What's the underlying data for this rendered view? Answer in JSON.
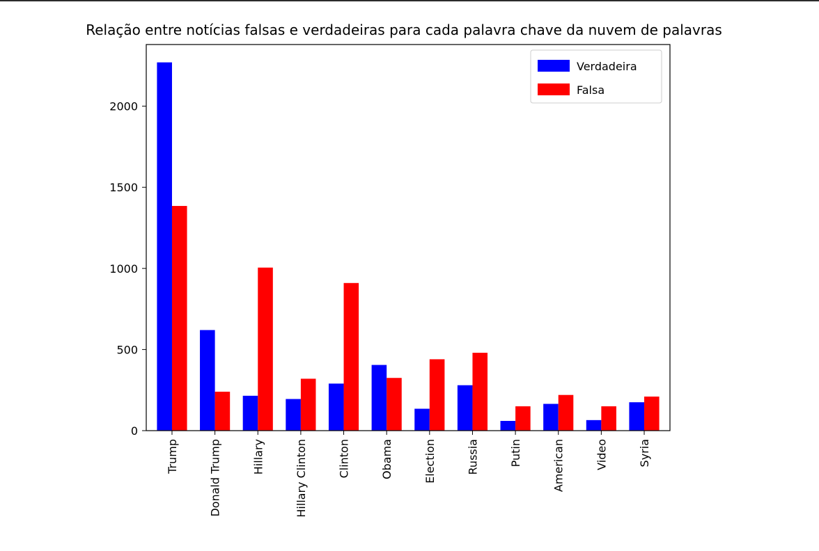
{
  "chart_data": {
    "type": "bar",
    "title": "Relação entre notícias falsas e verdadeiras para cada palavra chave da nuvem de palavras",
    "xlabel": "",
    "ylabel": "",
    "categories": [
      "Trump",
      "Donald Trump",
      "Hillary",
      "Hillary Clinton",
      "Clinton",
      "Obama",
      "Election",
      "Russia",
      "Putin",
      "American",
      "Video",
      "Syria"
    ],
    "series": [
      {
        "name": "Verdadeira",
        "color": "#0000ff",
        "values": [
          2270,
          620,
          215,
          195,
          290,
          405,
          135,
          280,
          60,
          165,
          65,
          175
        ]
      },
      {
        "name": "Falsa",
        "color": "#ff0000",
        "values": [
          1385,
          240,
          1005,
          320,
          910,
          325,
          440,
          480,
          150,
          220,
          150,
          210
        ]
      }
    ],
    "ylim": [
      0,
      2380
    ],
    "yticks": [
      0,
      500,
      1000,
      1500,
      2000
    ],
    "legend_position": "top-right",
    "grid": false
  }
}
